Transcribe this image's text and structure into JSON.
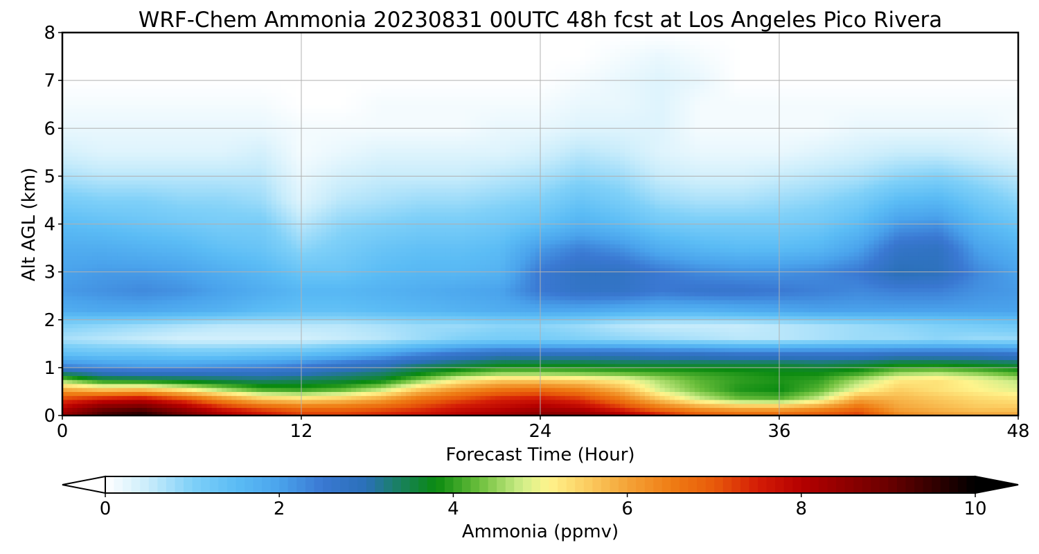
{
  "chart_data": {
    "type": "heatmap",
    "title": "WRF-Chem Ammonia  20230831 00UTC 48h fcst at Los Angeles Pico Rivera",
    "xlabel": "Forecast Time (Hour)",
    "ylabel": "Alt AGL (km)",
    "xlim": [
      0,
      48
    ],
    "ylim": [
      0,
      8
    ],
    "xticks": [
      0,
      12,
      24,
      36,
      48
    ],
    "yticks": [
      0,
      1,
      2,
      3,
      4,
      5,
      6,
      7,
      8
    ],
    "grid": true,
    "colorbar": {
      "label": "Ammonia  (ppmv)",
      "orientation": "horizontal",
      "position": "bottom",
      "range": [
        0,
        10
      ],
      "ticks": [
        0,
        2,
        4,
        6,
        8,
        10
      ],
      "extend": "both",
      "stops": [
        {
          "v": 0.0,
          "c": "#ffffff"
        },
        {
          "v": 0.5,
          "c": "#c8ecfb"
        },
        {
          "v": 1.0,
          "c": "#7fd0f8"
        },
        {
          "v": 1.5,
          "c": "#5bbcf5"
        },
        {
          "v": 2.0,
          "c": "#4aa3ec"
        },
        {
          "v": 2.5,
          "c": "#3a78d2"
        },
        {
          "v": 3.0,
          "c": "#2a70b8"
        },
        {
          "v": 3.3,
          "c": "#1c7e70"
        },
        {
          "v": 3.8,
          "c": "#0a8a10"
        },
        {
          "v": 4.3,
          "c": "#6cbf3c"
        },
        {
          "v": 4.8,
          "c": "#d2ef8a"
        },
        {
          "v": 5.1,
          "c": "#fff48c"
        },
        {
          "v": 5.5,
          "c": "#fcd064"
        },
        {
          "v": 6.0,
          "c": "#f4a338"
        },
        {
          "v": 6.5,
          "c": "#ef7d14"
        },
        {
          "v": 7.0,
          "c": "#e85a0a"
        },
        {
          "v": 7.5,
          "c": "#d41c06"
        },
        {
          "v": 8.0,
          "c": "#b50000"
        },
        {
          "v": 9.0,
          "c": "#6a0000"
        },
        {
          "v": 10.0,
          "c": "#000000"
        }
      ]
    },
    "x": [
      0,
      2,
      4,
      6,
      8,
      10,
      12,
      14,
      16,
      18,
      20,
      22,
      24,
      26,
      28,
      30,
      32,
      34,
      36,
      38,
      40,
      42,
      44,
      46,
      48
    ],
    "y": [
      0,
      0.15,
      0.35,
      0.55,
      0.75,
      0.9,
      1.05,
      1.3,
      1.6,
      1.9,
      2.2,
      2.6,
      3.0,
      3.5,
      4.0,
      4.5,
      5.0,
      5.5,
      6.0,
      6.5,
      7.0,
      7.5,
      8.0
    ],
    "z_units": "ppmv",
    "z": [
      [
        8.4,
        9.4,
        9.8,
        9.0,
        8.2,
        7.7,
        7.3,
        7.3,
        7.5,
        7.7,
        8.0,
        8.3,
        8.7,
        8.6,
        8.2,
        7.6,
        7.1,
        6.9,
        6.9,
        7.1,
        7.3,
        6.4,
        6.1,
        6.0,
        6.0
      ],
      [
        8.0,
        8.9,
        9.1,
        8.4,
        7.6,
        7.1,
        6.8,
        6.8,
        7.0,
        7.3,
        7.7,
        7.9,
        8.2,
        8.0,
        7.4,
        6.7,
        6.2,
        6.0,
        6.0,
        6.3,
        6.8,
        6.0,
        5.8,
        5.6,
        5.6
      ],
      [
        7.2,
        7.6,
        7.8,
        7.2,
        6.3,
        5.6,
        5.4,
        5.6,
        6.0,
        6.7,
        7.1,
        7.5,
        7.6,
        7.3,
        6.6,
        5.6,
        4.8,
        4.3,
        4.2,
        4.8,
        6.0,
        5.8,
        5.6,
        5.4,
        5.3
      ],
      [
        5.9,
        5.6,
        5.7,
        5.2,
        4.6,
        4.1,
        4.0,
        4.2,
        4.7,
        5.6,
        6.2,
        6.6,
        6.7,
        6.4,
        5.8,
        4.8,
        4.3,
        3.9,
        3.8,
        4.2,
        5.0,
        5.5,
        5.3,
        5.1,
        4.9
      ],
      [
        4.4,
        3.7,
        3.6,
        3.5,
        3.4,
        3.3,
        3.4,
        3.5,
        3.7,
        4.4,
        5.1,
        5.5,
        5.5,
        5.4,
        5.1,
        4.6,
        4.2,
        4.0,
        3.9,
        4.0,
        4.6,
        5.2,
        5.3,
        5.0,
        4.7
      ],
      [
        3.2,
        2.9,
        2.8,
        2.8,
        2.8,
        2.8,
        2.9,
        3.1,
        3.3,
        3.7,
        4.1,
        4.4,
        4.4,
        4.3,
        4.2,
        4.1,
        4.0,
        3.9,
        3.8,
        3.8,
        4.0,
        4.5,
        4.6,
        4.4,
        4.1
      ],
      [
        2.3,
        2.1,
        2.0,
        2.0,
        2.1,
        2.2,
        2.4,
        2.7,
        2.9,
        3.3,
        3.5,
        3.7,
        3.7,
        3.7,
        3.6,
        3.6,
        3.6,
        3.6,
        3.6,
        3.5,
        3.6,
        3.8,
        3.8,
        3.7,
        3.6
      ],
      [
        1.4,
        1.3,
        1.3,
        1.2,
        1.2,
        1.3,
        1.4,
        1.6,
        1.9,
        2.3,
        2.6,
        2.8,
        2.8,
        2.8,
        2.8,
        2.7,
        2.7,
        2.6,
        2.6,
        2.6,
        2.6,
        2.7,
        2.7,
        2.7,
        2.6
      ],
      [
        0.7,
        0.6,
        0.5,
        0.4,
        0.4,
        0.4,
        0.4,
        0.5,
        0.6,
        0.8,
        1.0,
        1.1,
        1.1,
        1.0,
        0.9,
        0.8,
        0.7,
        0.6,
        0.6,
        0.7,
        0.8,
        0.8,
        0.9,
        0.8,
        0.8
      ],
      [
        1.0,
        0.9,
        0.8,
        0.7,
        0.6,
        0.6,
        0.6,
        0.6,
        0.7,
        0.8,
        0.8,
        0.9,
        0.9,
        0.8,
        0.6,
        0.5,
        0.5,
        0.5,
        0.6,
        0.7,
        0.8,
        0.9,
        1.0,
        1.1,
        1.2
      ],
      [
        1.8,
        1.9,
        1.9,
        1.8,
        1.7,
        1.5,
        1.4,
        1.4,
        1.5,
        1.6,
        1.7,
        1.8,
        1.9,
        1.9,
        1.8,
        1.7,
        1.7,
        1.8,
        1.9,
        2.0,
        2.0,
        2.0,
        2.0,
        2.0,
        2.0
      ],
      [
        2.1,
        2.2,
        2.3,
        2.2,
        2.0,
        1.8,
        1.6,
        1.6,
        1.7,
        1.8,
        1.9,
        2.0,
        2.5,
        2.7,
        2.7,
        2.5,
        2.6,
        2.6,
        2.5,
        2.4,
        2.3,
        2.4,
        2.4,
        2.2,
        2.1
      ],
      [
        2.0,
        2.1,
        2.1,
        2.0,
        1.8,
        1.6,
        1.3,
        1.3,
        1.5,
        1.6,
        1.6,
        1.7,
        2.5,
        2.8,
        2.8,
        2.5,
        2.3,
        2.2,
        2.2,
        2.3,
        2.5,
        3.0,
        2.9,
        2.3,
        2.0
      ],
      [
        1.8,
        1.8,
        1.7,
        1.6,
        1.4,
        1.3,
        0.9,
        1.1,
        1.3,
        1.4,
        1.4,
        1.5,
        2.1,
        2.4,
        2.2,
        1.8,
        1.6,
        1.5,
        1.5,
        1.6,
        2.0,
        2.7,
        2.8,
        2.0,
        1.7
      ],
      [
        1.5,
        1.4,
        1.3,
        1.2,
        1.1,
        1.1,
        0.6,
        0.9,
        1.0,
        1.1,
        1.1,
        1.2,
        1.4,
        1.7,
        1.5,
        1.2,
        1.1,
        1.1,
        1.1,
        1.2,
        1.5,
        2.1,
        2.2,
        1.6,
        1.3
      ],
      [
        1.1,
        1.0,
        1.0,
        0.9,
        0.9,
        0.8,
        0.3,
        0.6,
        0.7,
        0.8,
        0.8,
        0.9,
        1.0,
        1.3,
        1.1,
        0.8,
        0.7,
        0.7,
        0.8,
        0.9,
        1.1,
        1.5,
        1.6,
        1.2,
        0.9
      ],
      [
        0.7,
        0.6,
        0.6,
        0.6,
        0.6,
        0.6,
        0.2,
        0.4,
        0.5,
        0.5,
        0.5,
        0.6,
        0.7,
        0.9,
        0.8,
        0.5,
        0.4,
        0.4,
        0.5,
        0.6,
        0.7,
        0.9,
        1.0,
        0.8,
        0.6
      ],
      [
        0.4,
        0.3,
        0.3,
        0.3,
        0.3,
        0.4,
        0.1,
        0.2,
        0.3,
        0.3,
        0.3,
        0.3,
        0.4,
        0.6,
        0.5,
        0.3,
        0.2,
        0.2,
        0.2,
        0.3,
        0.4,
        0.5,
        0.5,
        0.4,
        0.3
      ],
      [
        0.2,
        0.2,
        0.2,
        0.2,
        0.2,
        0.2,
        0.1,
        0.1,
        0.1,
        0.1,
        0.1,
        0.2,
        0.2,
        0.3,
        0.3,
        0.3,
        0.1,
        0.1,
        0.1,
        0.1,
        0.2,
        0.2,
        0.2,
        0.2,
        0.1
      ],
      [
        0.1,
        0.1,
        0.1,
        0.1,
        0.1,
        0.1,
        0.0,
        0.0,
        0.1,
        0.1,
        0.1,
        0.1,
        0.1,
        0.2,
        0.2,
        0.3,
        0.1,
        0.1,
        0.1,
        0.1,
        0.1,
        0.1,
        0.1,
        0.1,
        0.1
      ],
      [
        0.0,
        0.0,
        0.0,
        0.0,
        0.0,
        0.0,
        0.0,
        0.0,
        0.0,
        0.0,
        0.0,
        0.0,
        0.0,
        0.1,
        0.2,
        0.3,
        0.2,
        0.0,
        0.0,
        0.0,
        0.0,
        0.0,
        0.0,
        0.0,
        0.0
      ],
      [
        0.0,
        0.0,
        0.0,
        0.0,
        0.0,
        0.0,
        0.0,
        0.0,
        0.0,
        0.0,
        0.0,
        0.0,
        0.0,
        0.0,
        0.1,
        0.2,
        0.1,
        0.0,
        0.0,
        0.0,
        0.0,
        0.0,
        0.0,
        0.0,
        0.0
      ],
      [
        0.0,
        0.0,
        0.0,
        0.0,
        0.0,
        0.0,
        0.0,
        0.0,
        0.0,
        0.0,
        0.0,
        0.0,
        0.0,
        0.0,
        0.0,
        0.0,
        0.0,
        0.0,
        0.0,
        0.0,
        0.0,
        0.0,
        0.0,
        0.0,
        0.0
      ]
    ]
  }
}
